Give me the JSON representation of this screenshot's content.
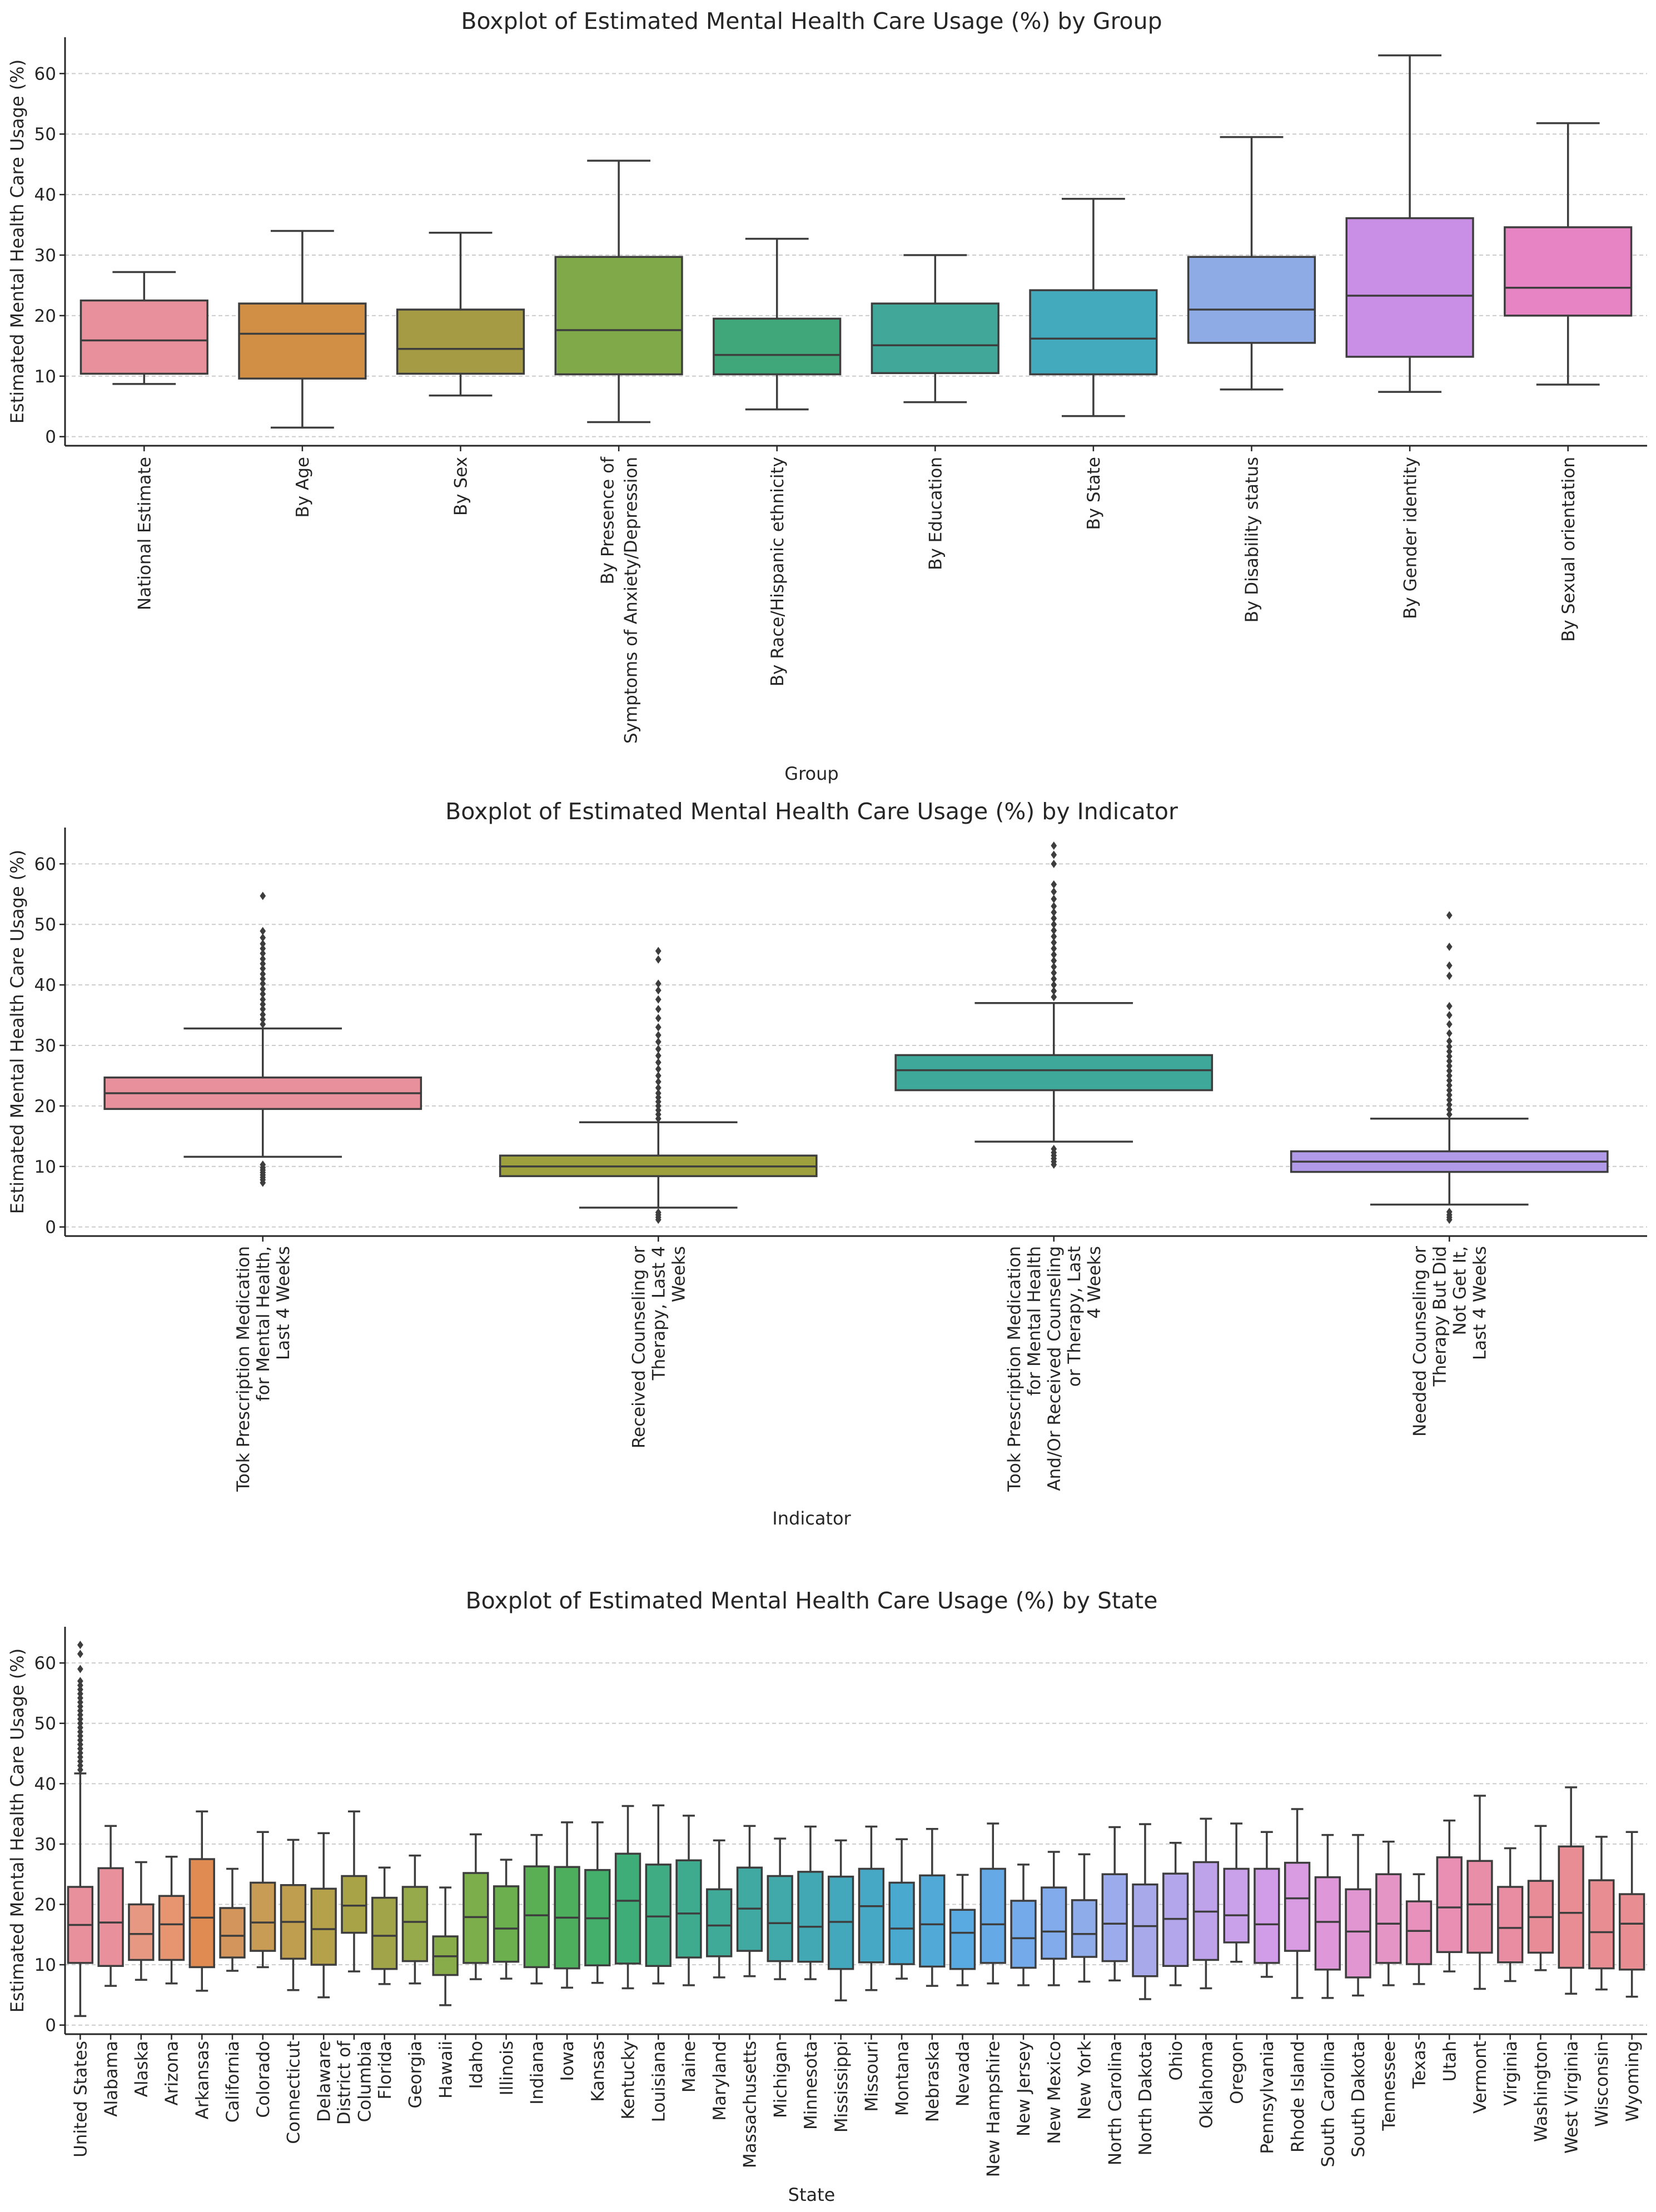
{
  "chart_data": [
    {
      "type": "box",
      "title": "Boxplot of Estimated Mental Health Care Usage (%) by Group",
      "xlabel": "Group",
      "ylabel": "Estimated Mental Health Care Usage (%)",
      "ylim": [
        -1.5,
        66
      ],
      "yticks": [
        0,
        10,
        20,
        30,
        40,
        50,
        60
      ],
      "grid": "horizontal",
      "categories": [
        "National Estimate",
        "By Age",
        "By Sex",
        "By Presence of\nSymptoms of Anxiety/Depression",
        "By Race/Hispanic ethnicity",
        "By Education",
        "By State",
        "By Disability status",
        "By Gender identity",
        "By Sexual orientation"
      ],
      "colors": [
        "#e8919d",
        "#d08f45",
        "#a59b44",
        "#80a94a",
        "#3fa77a",
        "#40a799",
        "#43aabe",
        "#8fabe6",
        "#c98ee6",
        "#e784c4"
      ],
      "boxes": [
        {
          "whislo": 8.7,
          "q1": 10.4,
          "med": 15.9,
          "q3": 22.5,
          "whishi": 27.2,
          "fliers": []
        },
        {
          "whislo": 1.5,
          "q1": 9.6,
          "med": 17.0,
          "q3": 22.0,
          "whishi": 34.0,
          "fliers": []
        },
        {
          "whislo": 6.8,
          "q1": 10.4,
          "med": 14.5,
          "q3": 21.0,
          "whishi": 33.7,
          "fliers": []
        },
        {
          "whislo": 2.4,
          "q1": 10.3,
          "med": 17.6,
          "q3": 29.7,
          "whishi": 45.6,
          "fliers": []
        },
        {
          "whislo": 4.5,
          "q1": 10.3,
          "med": 13.5,
          "q3": 19.5,
          "whishi": 32.7,
          "fliers": []
        },
        {
          "whislo": 5.7,
          "q1": 10.5,
          "med": 15.1,
          "q3": 22.0,
          "whishi": 30.0,
          "fliers": []
        },
        {
          "whislo": 3.4,
          "q1": 10.3,
          "med": 16.2,
          "q3": 24.2,
          "whishi": 39.3,
          "fliers": []
        },
        {
          "whislo": 7.8,
          "q1": 15.5,
          "med": 21.0,
          "q3": 29.7,
          "whishi": 49.5,
          "fliers": []
        },
        {
          "whislo": 7.4,
          "q1": 13.2,
          "med": 23.3,
          "q3": 36.1,
          "whishi": 63.0,
          "fliers": []
        },
        {
          "whislo": 8.6,
          "q1": 20.0,
          "med": 24.6,
          "q3": 34.6,
          "whishi": 51.8,
          "fliers": []
        }
      ]
    },
    {
      "type": "box",
      "title": "Boxplot of Estimated Mental Health Care Usage (%) by Indicator",
      "xlabel": "Indicator",
      "ylabel": "Estimated Mental Health Care Usage (%)",
      "ylim": [
        -1.5,
        66
      ],
      "yticks": [
        0,
        10,
        20,
        30,
        40,
        50,
        60
      ],
      "grid": "horizontal",
      "categories": [
        "Took Prescription Medication\nfor Mental Health,\nLast 4 Weeks",
        "Received Counseling or\nTherapy, Last 4\nWeeks",
        "Took Prescription Medication\nfor Mental Health\nAnd/Or Received Counseling\nor Therapy, Last\n4 Weeks",
        "Needed Counseling or\nTherapy But Did\nNot Get It,\nLast 4 Weeks"
      ],
      "colors": [
        "#e8919d",
        "#9ea03d",
        "#3ea99b",
        "#b19be8"
      ],
      "boxes": [
        {
          "whislo": 11.6,
          "q1": 19.5,
          "med": 22.1,
          "q3": 24.7,
          "whishi": 32.8,
          "fliers": [
            7.3,
            7.8,
            8.2,
            8.6,
            9.0,
            9.4,
            9.8,
            10.3,
            33.5,
            34.3,
            35.1,
            36.0,
            36.8,
            37.6,
            38.5,
            39.3,
            40.2,
            41.0,
            41.8,
            42.7,
            43.5,
            44.3,
            45.2,
            46.0,
            46.8,
            47.8,
            48.9,
            54.7
          ]
        },
        {
          "whislo": 3.2,
          "q1": 8.4,
          "med": 10.0,
          "q3": 11.8,
          "whishi": 17.3,
          "fliers": [
            1.2,
            1.6,
            2.0,
            2.4,
            17.9,
            18.6,
            19.3,
            20.0,
            20.7,
            21.4,
            22.1,
            23.0,
            24.0,
            25.0,
            26.1,
            27.2,
            28.3,
            29.4,
            30.6,
            31.7,
            33.0,
            34.5,
            36.0,
            37.6,
            39.1,
            40.2,
            44.2,
            45.6
          ]
        },
        {
          "whislo": 14.1,
          "q1": 22.6,
          "med": 25.9,
          "q3": 28.4,
          "whishi": 37.0,
          "fliers": [
            10.3,
            10.8,
            11.3,
            11.8,
            12.3,
            12.9,
            38.0,
            39.0,
            40.0,
            41.0,
            42.0,
            43.0,
            44.0,
            45.0,
            46.0,
            47.0,
            48.0,
            49.0,
            50.0,
            51.0,
            52.0,
            53.0,
            54.2,
            55.4,
            56.6,
            60.0,
            61.5,
            63.0
          ]
        },
        {
          "whislo": 3.7,
          "q1": 9.1,
          "med": 10.8,
          "q3": 12.5,
          "whishi": 17.9,
          "fliers": [
            1.2,
            1.6,
            2.0,
            2.5,
            18.6,
            19.4,
            20.2,
            21.0,
            21.8,
            22.6,
            23.4,
            24.2,
            25.0,
            25.8,
            26.6,
            27.4,
            28.2,
            29.0,
            29.8,
            30.7,
            32.0,
            33.5,
            35.0,
            36.5,
            41.5,
            43.2,
            46.3,
            51.5
          ]
        }
      ]
    },
    {
      "type": "box",
      "title": "Boxplot of Estimated Mental Health Care Usage (%) by State",
      "xlabel": "State",
      "ylabel": "Estimated Mental Health Care Usage (%)",
      "ylim": [
        -1.5,
        66
      ],
      "yticks": [
        0,
        10,
        20,
        30,
        40,
        50,
        60
      ],
      "grid": "horizontal",
      "categories": [
        "United States",
        "Alabama",
        "Alaska",
        "Arizona",
        "Arkansas",
        "California",
        "Colorado",
        "Connecticut",
        "Delaware",
        "District of\nColumbia",
        "Florida",
        "Georgia",
        "Hawaii",
        "Idaho",
        "Illinois",
        "Indiana",
        "Iowa",
        "Kansas",
        "Kentucky",
        "Louisiana",
        "Maine",
        "Maryland",
        "Massachusetts",
        "Michigan",
        "Minnesota",
        "Mississippi",
        "Missouri",
        "Montana",
        "Nebraska",
        "Nevada",
        "New Hampshire",
        "New Jersey",
        "New Mexico",
        "New York",
        "North Carolina",
        "North Dakota",
        "Ohio",
        "Oklahoma",
        "Oregon",
        "Pennsylvania",
        "Rhode Island",
        "South Carolina",
        "South Dakota",
        "Tennessee",
        "Texas",
        "Utah",
        "Vermont",
        "Virginia",
        "Washington",
        "West Virginia",
        "Wisconsin",
        "Wyoming"
      ],
      "colors": [
        "#e8919d",
        "#e8919d",
        "#e79883",
        "#e69570",
        "#df8b52",
        "#d4955c",
        "#c99c55",
        "#c09e4f",
        "#b5a14a",
        "#a9a347",
        "#a1a448",
        "#96a94b",
        "#89ac4b",
        "#7cae4b",
        "#6caf4f",
        "#5aaf55",
        "#4daf5e",
        "#44ae6b",
        "#3fad78",
        "#3fac83",
        "#3fab8e",
        "#40aa98",
        "#40a9a1",
        "#41a9aa",
        "#42a8b3",
        "#44a8bc",
        "#46a8c5",
        "#4aa9ce",
        "#50a9d7",
        "#59aae0",
        "#65aae6",
        "#74aae9",
        "#81abea",
        "#8facea",
        "#9cabeb",
        "#a8a9eb",
        "#b3a6eb",
        "#bea3eb",
        "#c9a0ea",
        "#d29de8",
        "#d99be2",
        "#de98da",
        "#e296d1",
        "#e594c6",
        "#e891bc",
        "#e88fb3",
        "#e98ea9",
        "#e98da2",
        "#e88c98",
        "#e88d94",
        "#e88d92",
        "#e88e92"
      ],
      "boxes": [
        {
          "whislo": 1.5,
          "q1": 10.3,
          "med": 16.6,
          "q3": 22.9,
          "whishi": 41.7,
          "fliers": [
            42.3,
            43.0,
            43.7,
            44.4,
            45.1,
            45.8,
            46.5,
            47.2,
            47.9,
            48.6,
            49.3,
            50.0,
            50.7,
            51.4,
            52.1,
            52.8,
            53.5,
            54.2,
            54.9,
            55.6,
            56.3,
            57.0,
            59.0,
            61.5,
            63.0
          ]
        },
        {
          "whislo": 6.5,
          "q1": 9.8,
          "med": 17.0,
          "q3": 26.0,
          "whishi": 33.0,
          "fliers": []
        },
        {
          "whislo": 7.5,
          "q1": 10.8,
          "med": 15.1,
          "q3": 20.0,
          "whishi": 27.0,
          "fliers": []
        },
        {
          "whislo": 6.9,
          "q1": 10.8,
          "med": 16.7,
          "q3": 21.4,
          "whishi": 27.9,
          "fliers": []
        },
        {
          "whislo": 5.7,
          "q1": 9.6,
          "med": 17.8,
          "q3": 27.5,
          "whishi": 35.4,
          "fliers": []
        },
        {
          "whislo": 9.0,
          "q1": 11.2,
          "med": 14.8,
          "q3": 19.4,
          "whishi": 25.9,
          "fliers": []
        },
        {
          "whislo": 9.6,
          "q1": 12.3,
          "med": 17.0,
          "q3": 23.6,
          "whishi": 32.0,
          "fliers": []
        },
        {
          "whislo": 5.8,
          "q1": 11.0,
          "med": 17.1,
          "q3": 23.2,
          "whishi": 30.7,
          "fliers": []
        },
        {
          "whislo": 4.6,
          "q1": 10.0,
          "med": 15.9,
          "q3": 22.6,
          "whishi": 31.8,
          "fliers": []
        },
        {
          "whislo": 8.9,
          "q1": 15.3,
          "med": 19.8,
          "q3": 24.7,
          "whishi": 35.4,
          "fliers": []
        },
        {
          "whislo": 6.8,
          "q1": 9.3,
          "med": 14.8,
          "q3": 21.1,
          "whishi": 26.1,
          "fliers": []
        },
        {
          "whislo": 6.9,
          "q1": 10.6,
          "med": 17.1,
          "q3": 22.9,
          "whishi": 28.1,
          "fliers": []
        },
        {
          "whislo": 3.3,
          "q1": 8.3,
          "med": 11.4,
          "q3": 14.7,
          "whishi": 22.8,
          "fliers": []
        },
        {
          "whislo": 7.6,
          "q1": 10.3,
          "med": 17.9,
          "q3": 25.2,
          "whishi": 31.6,
          "fliers": []
        },
        {
          "whislo": 7.7,
          "q1": 10.5,
          "med": 16.0,
          "q3": 23.0,
          "whishi": 27.4,
          "fliers": []
        },
        {
          "whislo": 6.9,
          "q1": 9.6,
          "med": 18.2,
          "q3": 26.3,
          "whishi": 31.5,
          "fliers": []
        },
        {
          "whislo": 6.2,
          "q1": 9.4,
          "med": 17.8,
          "q3": 26.2,
          "whishi": 33.6,
          "fliers": []
        },
        {
          "whislo": 7.0,
          "q1": 9.9,
          "med": 17.7,
          "q3": 25.7,
          "whishi": 33.6,
          "fliers": []
        },
        {
          "whislo": 6.1,
          "q1": 10.2,
          "med": 20.6,
          "q3": 28.4,
          "whishi": 36.3,
          "fliers": []
        },
        {
          "whislo": 6.9,
          "q1": 9.8,
          "med": 18.0,
          "q3": 26.6,
          "whishi": 36.4,
          "fliers": []
        },
        {
          "whislo": 6.6,
          "q1": 11.2,
          "med": 18.5,
          "q3": 27.3,
          "whishi": 34.7,
          "fliers": []
        },
        {
          "whislo": 7.9,
          "q1": 11.4,
          "med": 16.5,
          "q3": 22.5,
          "whishi": 30.6,
          "fliers": []
        },
        {
          "whislo": 8.1,
          "q1": 12.3,
          "med": 19.3,
          "q3": 26.1,
          "whishi": 33.0,
          "fliers": []
        },
        {
          "whislo": 7.6,
          "q1": 10.6,
          "med": 16.9,
          "q3": 24.7,
          "whishi": 30.9,
          "fliers": []
        },
        {
          "whislo": 7.6,
          "q1": 10.5,
          "med": 16.3,
          "q3": 25.4,
          "whishi": 32.9,
          "fliers": []
        },
        {
          "whislo": 4.1,
          "q1": 9.3,
          "med": 17.1,
          "q3": 24.6,
          "whishi": 30.6,
          "fliers": []
        },
        {
          "whislo": 5.8,
          "q1": 10.4,
          "med": 19.7,
          "q3": 25.9,
          "whishi": 32.9,
          "fliers": []
        },
        {
          "whislo": 7.7,
          "q1": 10.1,
          "med": 16.0,
          "q3": 23.6,
          "whishi": 30.8,
          "fliers": []
        },
        {
          "whislo": 6.5,
          "q1": 9.7,
          "med": 16.7,
          "q3": 24.8,
          "whishi": 32.5,
          "fliers": []
        },
        {
          "whislo": 6.6,
          "q1": 9.3,
          "med": 15.3,
          "q3": 19.1,
          "whishi": 24.9,
          "fliers": []
        },
        {
          "whislo": 6.9,
          "q1": 10.3,
          "med": 16.7,
          "q3": 25.9,
          "whishi": 33.4,
          "fliers": []
        },
        {
          "whislo": 6.6,
          "q1": 9.5,
          "med": 14.4,
          "q3": 20.6,
          "whishi": 26.6,
          "fliers": []
        },
        {
          "whislo": 6.6,
          "q1": 11.0,
          "med": 15.5,
          "q3": 22.8,
          "whishi": 28.7,
          "fliers": []
        },
        {
          "whislo": 7.2,
          "q1": 11.3,
          "med": 15.1,
          "q3": 20.7,
          "whishi": 28.3,
          "fliers": []
        },
        {
          "whislo": 7.4,
          "q1": 10.6,
          "med": 16.8,
          "q3": 25.0,
          "whishi": 32.8,
          "fliers": []
        },
        {
          "whislo": 4.3,
          "q1": 8.1,
          "med": 16.4,
          "q3": 23.3,
          "whishi": 33.3,
          "fliers": []
        },
        {
          "whislo": 6.6,
          "q1": 9.8,
          "med": 17.6,
          "q3": 25.1,
          "whishi": 30.2,
          "fliers": []
        },
        {
          "whislo": 6.1,
          "q1": 10.8,
          "med": 18.8,
          "q3": 27.0,
          "whishi": 34.2,
          "fliers": []
        },
        {
          "whislo": 10.5,
          "q1": 13.7,
          "med": 18.2,
          "q3": 25.9,
          "whishi": 33.4,
          "fliers": []
        },
        {
          "whislo": 8.0,
          "q1": 10.3,
          "med": 16.7,
          "q3": 25.9,
          "whishi": 32.0,
          "fliers": []
        },
        {
          "whislo": 4.5,
          "q1": 12.3,
          "med": 21.0,
          "q3": 26.9,
          "whishi": 35.8,
          "fliers": []
        },
        {
          "whislo": 4.5,
          "q1": 9.2,
          "med": 17.1,
          "q3": 24.5,
          "whishi": 31.5,
          "fliers": []
        },
        {
          "whislo": 4.9,
          "q1": 7.9,
          "med": 15.5,
          "q3": 22.5,
          "whishi": 31.5,
          "fliers": []
        },
        {
          "whislo": 6.6,
          "q1": 10.3,
          "med": 16.8,
          "q3": 25.0,
          "whishi": 30.4,
          "fliers": []
        },
        {
          "whislo": 6.8,
          "q1": 10.1,
          "med": 15.6,
          "q3": 20.5,
          "whishi": 25.0,
          "fliers": []
        },
        {
          "whislo": 8.9,
          "q1": 12.1,
          "med": 19.5,
          "q3": 27.8,
          "whishi": 33.9,
          "fliers": []
        },
        {
          "whislo": 6.0,
          "q1": 12.0,
          "med": 20.0,
          "q3": 27.2,
          "whishi": 38.0,
          "fliers": []
        },
        {
          "whislo": 7.3,
          "q1": 10.4,
          "med": 16.1,
          "q3": 22.9,
          "whishi": 29.3,
          "fliers": []
        },
        {
          "whislo": 9.1,
          "q1": 12.0,
          "med": 17.9,
          "q3": 23.9,
          "whishi": 33.0,
          "fliers": []
        },
        {
          "whislo": 5.2,
          "q1": 9.5,
          "med": 18.6,
          "q3": 29.6,
          "whishi": 39.4,
          "fliers": []
        },
        {
          "whislo": 5.9,
          "q1": 9.4,
          "med": 15.4,
          "q3": 24.0,
          "whishi": 31.2,
          "fliers": []
        },
        {
          "whislo": 4.7,
          "q1": 9.2,
          "med": 16.8,
          "q3": 21.7,
          "whishi": 32.0,
          "fliers": []
        }
      ]
    }
  ]
}
